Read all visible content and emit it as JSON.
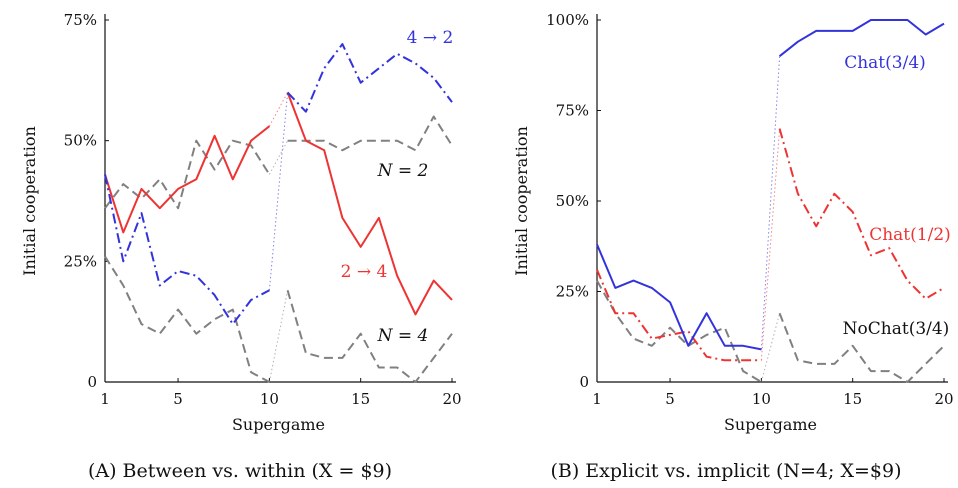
{
  "chart_data": [
    {
      "type": "line",
      "panel_caption": "(A) Between vs. within (X = $9)",
      "xlabel": "Supergame",
      "ylabel": "Initial cooperation",
      "xlim": [
        1,
        20
      ],
      "ylim": [
        0,
        75
      ],
      "xticks": [
        "1",
        "5",
        "10",
        "15",
        "20"
      ],
      "yticks": [
        "0",
        "25%",
        "50%",
        "75%"
      ],
      "ytick_values": [
        0,
        25,
        50,
        75
      ],
      "xtick_values": [
        1,
        5,
        10,
        15,
        20
      ],
      "series": [
        {
          "name": "N = 2",
          "color": "#808080",
          "style": "dashed",
          "x": [
            1,
            2,
            3,
            4,
            5,
            6,
            7,
            8,
            9,
            10,
            11,
            12,
            13,
            14,
            15,
            16,
            17,
            18,
            19,
            20
          ],
          "values": [
            36,
            41,
            38,
            42,
            36,
            50,
            44,
            50,
            49,
            43,
            50,
            50,
            50,
            48,
            50,
            50,
            50,
            48,
            55,
            49
          ]
        },
        {
          "name": "N = 4",
          "color": "#808080",
          "style": "dashed",
          "x": [
            1,
            2,
            3,
            4,
            5,
            6,
            7,
            8,
            9,
            10,
            11,
            12,
            13,
            14,
            15,
            16,
            17,
            18,
            19,
            20
          ],
          "values": [
            26,
            20,
            12,
            10,
            15,
            10,
            13,
            15,
            2,
            0,
            19,
            6,
            5,
            5,
            10,
            3,
            3,
            0,
            5,
            10
          ]
        },
        {
          "name": "2 → 4",
          "color": "#ee3333",
          "style": "solid",
          "x": [
            1,
            2,
            3,
            4,
            5,
            6,
            7,
            8,
            9,
            10,
            11,
            12,
            13,
            14,
            15,
            16,
            17,
            18,
            19,
            20
          ],
          "values": [
            43,
            31,
            40,
            36,
            40,
            42,
            51,
            42,
            50,
            53,
            60,
            50,
            48,
            34,
            28,
            34,
            22,
            14,
            21,
            17
          ]
        },
        {
          "name": "4 → 2",
          "color": "#3333dd",
          "style": "dashdot",
          "x": [
            1,
            2,
            3,
            4,
            5,
            6,
            7,
            8,
            9,
            10,
            11,
            12,
            13,
            14,
            15,
            16,
            17,
            18,
            19,
            20
          ],
          "values": [
            43,
            25,
            35,
            20,
            23,
            22,
            18,
            12,
            17,
            19,
            60,
            56,
            65,
            70,
            62,
            65,
            68,
            66,
            63,
            58
          ]
        }
      ],
      "annotations": [
        {
          "text": "4 → 2",
          "color": "#3333dd"
        },
        {
          "text": "N = 2",
          "color": "#111111"
        },
        {
          "text": "2 → 4",
          "color": "#ee3333"
        },
        {
          "text": "N = 4",
          "color": "#111111"
        }
      ]
    },
    {
      "type": "line",
      "panel_caption": "(B) Explicit vs. implicit (N=4; X=$9)",
      "xlabel": "Supergame",
      "ylabel": "Initial cooperation",
      "xlim": [
        1,
        20
      ],
      "ylim": [
        0,
        100
      ],
      "xticks": [
        "1",
        "5",
        "10",
        "15",
        "20"
      ],
      "yticks": [
        "0",
        "25%",
        "50%",
        "75%",
        "100%"
      ],
      "ytick_values": [
        0,
        25,
        50,
        75,
        100
      ],
      "xtick_values": [
        1,
        5,
        10,
        15,
        20
      ],
      "series": [
        {
          "name": "NoChat(3/4)",
          "color": "#808080",
          "style": "dashed",
          "x": [
            1,
            2,
            3,
            4,
            5,
            6,
            7,
            8,
            9,
            10,
            11,
            12,
            13,
            14,
            15,
            16,
            17,
            18,
            19,
            20
          ],
          "values": [
            28,
            19,
            12,
            10,
            15,
            10,
            13,
            15,
            3,
            0,
            19,
            6,
            5,
            5,
            10,
            3,
            3,
            0,
            5,
            10
          ]
        },
        {
          "name": "Chat(1/2)",
          "color": "#ee3333",
          "style": "dashdot",
          "x": [
            1,
            2,
            3,
            4,
            5,
            6,
            7,
            8,
            9,
            10,
            11,
            12,
            13,
            14,
            15,
            16,
            17,
            18,
            19,
            20
          ],
          "values": [
            31,
            19,
            19,
            12,
            13,
            14,
            7,
            6,
            6,
            6,
            70,
            52,
            43,
            52,
            47,
            35,
            37,
            28,
            23,
            26
          ]
        },
        {
          "name": "Chat(3/4)",
          "color": "#3333dd",
          "style": "solid",
          "x": [
            1,
            2,
            3,
            4,
            5,
            6,
            7,
            8,
            9,
            10,
            11,
            12,
            13,
            14,
            15,
            16,
            17,
            18,
            19,
            20
          ],
          "values": [
            38,
            26,
            28,
            26,
            22,
            10,
            19,
            10,
            10,
            9,
            90,
            94,
            97,
            97,
            97,
            100,
            100,
            100,
            96,
            99
          ]
        }
      ],
      "annotations": [
        {
          "text": "Chat(3/4)",
          "color": "#3333dd"
        },
        {
          "text": "Chat(1/2)",
          "color": "#ee3333"
        },
        {
          "text": "NoChat(3/4)",
          "color": "#111111"
        }
      ]
    }
  ]
}
